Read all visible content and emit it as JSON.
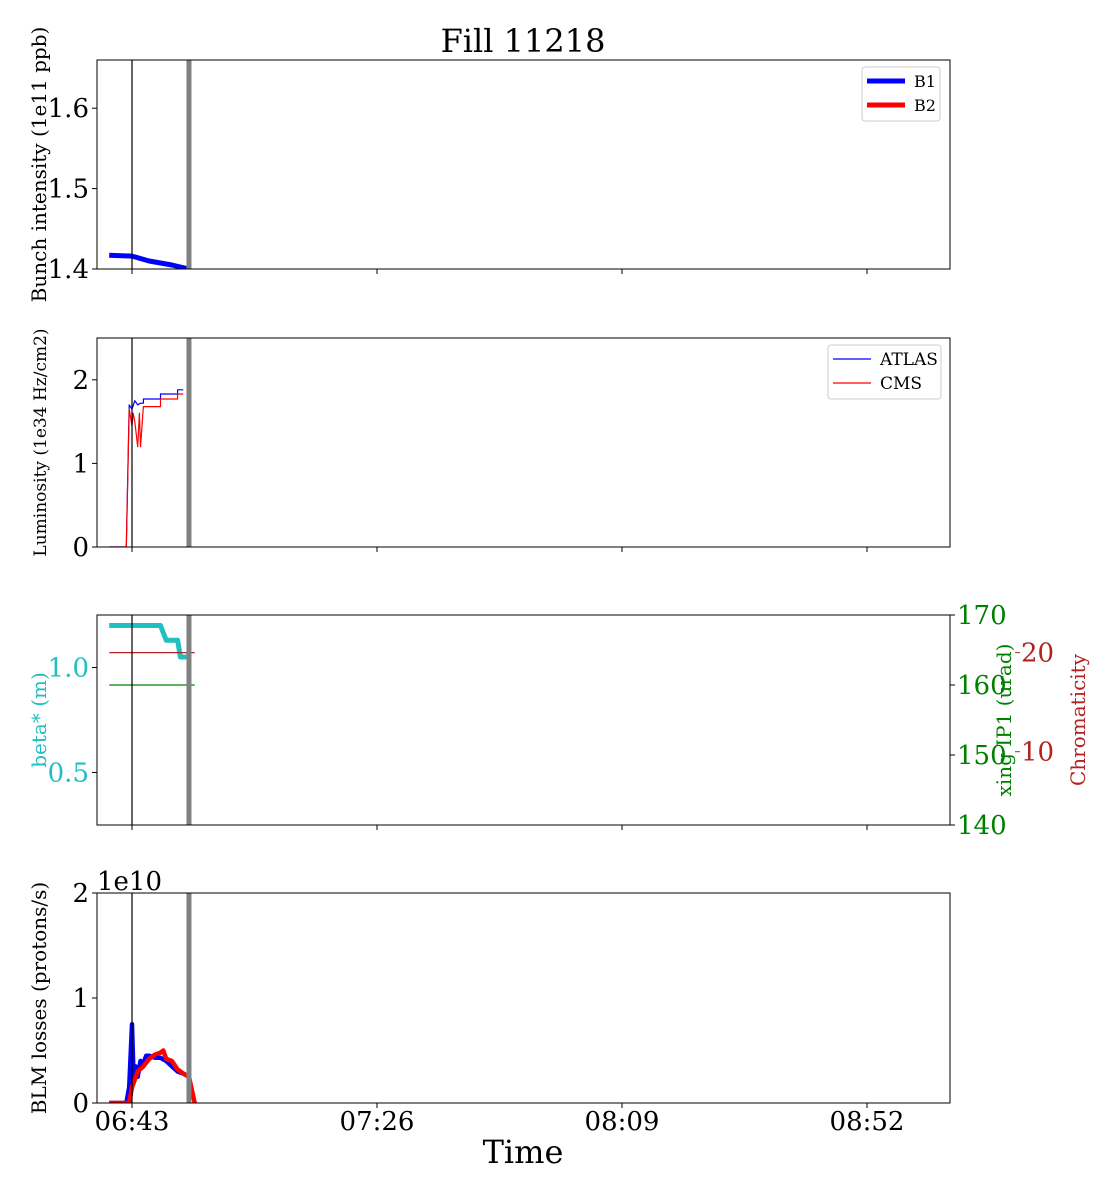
{
  "title": "Fill 11218",
  "xlabel": "Time",
  "x_ticks": [
    "06:43",
    "07:26",
    "08:09",
    "08:52"
  ],
  "chart_data": [
    {
      "type": "line",
      "ylabel": "Bunch intensity (1e11 ppb)",
      "ylim": [
        1.4,
        1.66
      ],
      "yticks": [
        "1.4",
        "1.5",
        "1.6"
      ],
      "yticks_values": [
        1.4,
        1.5,
        1.6
      ],
      "legend": "top-right",
      "series": [
        {
          "name": "B1",
          "color": "#0000ff",
          "x": [
            "06:39",
            "06:43",
            "06:46",
            "06:50",
            "06:53"
          ],
          "values": [
            1.417,
            1.416,
            1.41,
            1.405,
            1.4
          ]
        },
        {
          "name": "B2",
          "color": "#ff0000",
          "x": [],
          "values": []
        }
      ]
    },
    {
      "type": "line",
      "ylabel": "Luminosity (1e34 Hz/cm2)",
      "ylim": [
        0,
        2.5
      ],
      "yticks": [
        "0",
        "1",
        "2"
      ],
      "yticks_values": [
        0,
        1,
        2
      ],
      "legend": "top-right",
      "series": [
        {
          "name": "ATLAS",
          "color": "#0000ff",
          "x": [
            "06:39",
            "06:42",
            "06:42.5",
            "06:43",
            "06:43.5",
            "06:44",
            "06:44.5",
            "06:45",
            "06:45",
            "06:48",
            "06:48",
            "06:51",
            "06:51",
            "06:52"
          ],
          "values": [
            0,
            0,
            1.7,
            1.65,
            1.75,
            1.7,
            1.72,
            1.72,
            1.77,
            1.77,
            1.83,
            1.83,
            1.88,
            1.88
          ]
        },
        {
          "name": "CMS",
          "color": "#ff0000",
          "x": [
            "06:39",
            "06:42",
            "06:42.5",
            "06:43",
            "06:43.2",
            "06:43.5",
            "06:44",
            "06:44.3",
            "06:44.5",
            "06:45",
            "06:45",
            "06:48",
            "06:48",
            "06:51",
            "06:51",
            "06:52"
          ],
          "values": [
            0,
            0,
            1.65,
            1.45,
            1.6,
            1.5,
            1.2,
            1.6,
            1.2,
            1.68,
            1.68,
            1.68,
            1.77,
            1.77,
            1.83,
            1.83
          ]
        }
      ]
    },
    {
      "type": "line",
      "ylabel": "beta* (m)",
      "ylim": [
        0.25,
        1.25
      ],
      "yticks": [
        "0.5",
        "1.0"
      ],
      "yticks_values": [
        0.5,
        1.0
      ],
      "right_axis_1": {
        "label": "xing IP1 (urad)",
        "color": "#008000",
        "ylim": [
          140,
          170
        ],
        "yticks": [
          "140",
          "150",
          "160",
          "170"
        ]
      },
      "right_axis_2": {
        "label": "Chromaticity",
        "color": "#b22222",
        "ylim": [
          2.6,
          23.8
        ],
        "yticks": [
          "10",
          "20"
        ]
      },
      "series": [
        {
          "name": "",
          "color": "#20c0c0",
          "x": [
            "06:39",
            "06:48",
            "06:49",
            "06:51",
            "06:51.5",
            "06:53"
          ],
          "values": [
            1.2,
            1.2,
            1.13,
            1.13,
            1.05,
            1.05
          ]
        },
        {
          "name": "",
          "color": "#008000",
          "axis": "right_axis_1",
          "x": [
            "06:39",
            "06:54"
          ],
          "values": [
            160,
            160
          ]
        },
        {
          "name": "",
          "color": "#b22222",
          "axis": "right_axis_2",
          "x": [
            "06:39",
            "06:54"
          ],
          "values": [
            20,
            20
          ]
        }
      ]
    },
    {
      "type": "line",
      "ylabel": "BLM losses (protons/s)",
      "offset_label": "1e10",
      "ylim": [
        0,
        2
      ],
      "yticks": [
        "0",
        "1",
        "2"
      ],
      "yticks_values": [
        0,
        1,
        2
      ],
      "series": [
        {
          "name": "",
          "color": "#0000ff",
          "x": [
            "06:39",
            "06:42",
            "06:42.5",
            "06:43",
            "06:43.3",
            "06:43.6",
            "06:44",
            "06:44.5",
            "06:45",
            "06:45.5",
            "06:46",
            "06:47",
            "06:48",
            "06:49",
            "06:50",
            "06:51",
            "06:52",
            "06:53"
          ],
          "values": [
            0,
            0,
            0.15,
            0.75,
            0.2,
            0.35,
            0.25,
            0.4,
            0.38,
            0.45,
            0.45,
            0.43,
            0.43,
            0.4,
            0.35,
            0.3,
            0.28,
            0.25
          ]
        },
        {
          "name": "",
          "color": "#ff0000",
          "x": [
            "06:39",
            "06:42.5",
            "06:43",
            "06:44",
            "06:45",
            "06:46",
            "06:47",
            "06:48",
            "06:48.5",
            "06:49",
            "06:50",
            "06:51",
            "06:52",
            "06:53",
            "06:54"
          ],
          "values": [
            0,
            0,
            0.15,
            0.3,
            0.35,
            0.42,
            0.46,
            0.48,
            0.5,
            0.42,
            0.4,
            0.32,
            0.28,
            0.25,
            0
          ]
        }
      ]
    }
  ],
  "markers": [
    {
      "x": "06:43",
      "color": "#000000",
      "kind": "thin"
    },
    {
      "x": "06:53",
      "color": "#808080",
      "kind": "thick"
    }
  ]
}
